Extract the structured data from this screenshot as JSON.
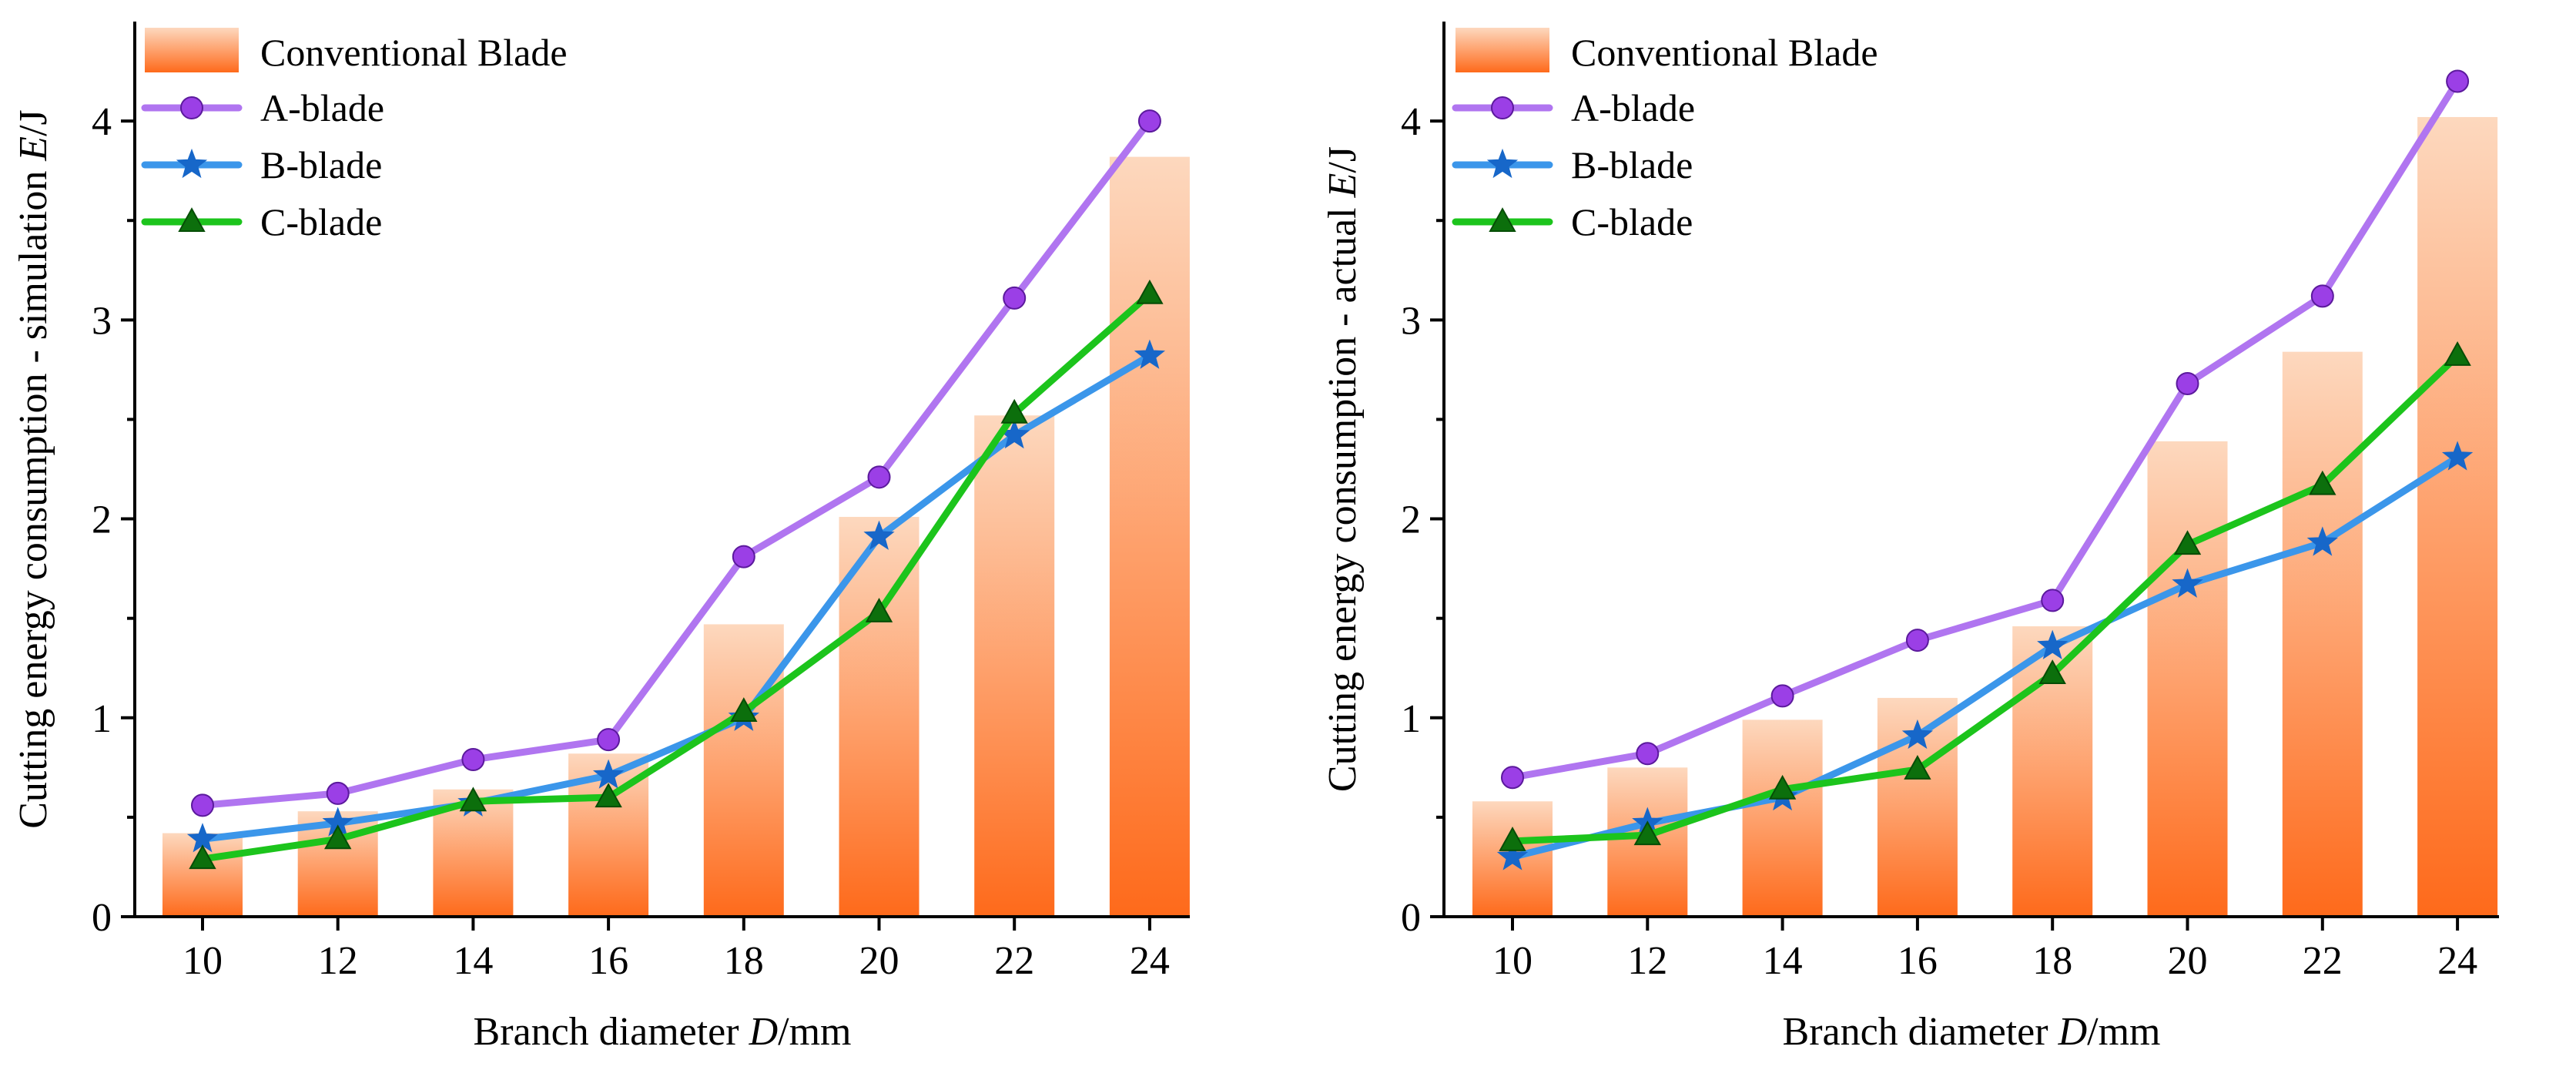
{
  "chart_data": [
    {
      "type": "bar",
      "xlabel": "Branch diameter D/mm",
      "xlabel_parts": [
        "Branch diameter ",
        "D",
        "/mm"
      ],
      "ylabel": "Cutting energy consumption - simulation E/J",
      "ylabel_parts": [
        "Cutting energy consumption - simulation ",
        "E",
        "/J"
      ],
      "categories": [
        "10",
        "12",
        "14",
        "16",
        "18",
        "20",
        "22",
        "24"
      ],
      "yticks": [
        "0",
        "1",
        "2",
        "3",
        "4"
      ],
      "ylim": [
        0,
        4.5
      ],
      "grid": false,
      "legend_position": "top-left",
      "series": [
        {
          "name": "Conventional Blade",
          "kind": "bar",
          "values": [
            0.42,
            0.53,
            0.64,
            0.82,
            1.47,
            2.01,
            2.52,
            3.82
          ]
        },
        {
          "name": "A-blade",
          "kind": "line",
          "marker": "circle",
          "values": [
            0.56,
            0.62,
            0.79,
            0.89,
            1.81,
            2.21,
            3.11,
            4.0
          ]
        },
        {
          "name": "B-blade",
          "kind": "line",
          "marker": "star",
          "values": [
            0.39,
            0.47,
            0.57,
            0.71,
            1.0,
            1.91,
            2.42,
            2.82
          ]
        },
        {
          "name": "C-blade",
          "kind": "line",
          "marker": "triangle",
          "values": [
            0.29,
            0.39,
            0.58,
            0.6,
            1.03,
            1.53,
            2.53,
            3.13
          ]
        }
      ]
    },
    {
      "type": "bar",
      "xlabel": "Branch diameter D/mm",
      "xlabel_parts": [
        "Branch diameter ",
        "D",
        "/mm"
      ],
      "ylabel": "Cutting energy consumption - actual E/J",
      "ylabel_parts": [
        "Cutting energy consumption - actual ",
        "E",
        "/J"
      ],
      "categories": [
        "10",
        "12",
        "14",
        "16",
        "18",
        "20",
        "22",
        "24"
      ],
      "yticks": [
        "0",
        "1",
        "2",
        "3",
        "4"
      ],
      "ylim": [
        0,
        4.5
      ],
      "grid": false,
      "legend_position": "top-left",
      "series": [
        {
          "name": "Conventional Blade",
          "kind": "bar",
          "values": [
            0.58,
            0.75,
            0.99,
            1.1,
            1.46,
            2.39,
            2.84,
            4.02
          ]
        },
        {
          "name": "A-blade",
          "kind": "line",
          "marker": "circle",
          "values": [
            0.7,
            0.82,
            1.11,
            1.39,
            1.59,
            2.68,
            3.12,
            4.2
          ]
        },
        {
          "name": "B-blade",
          "kind": "line",
          "marker": "star",
          "values": [
            0.3,
            0.47,
            0.6,
            0.91,
            1.36,
            1.67,
            1.88,
            2.31
          ]
        },
        {
          "name": "C-blade",
          "kind": "line",
          "marker": "triangle",
          "values": [
            0.38,
            0.41,
            0.64,
            0.74,
            1.22,
            1.87,
            2.17,
            2.82
          ]
        }
      ]
    }
  ],
  "colors": {
    "bar_top": "#fdd8be",
    "bar_bottom": "#fe6a1b",
    "a_line": "#b075f0",
    "a_marker": "#9b3fe6",
    "b_line": "#3b96ea",
    "b_marker": "#1767c9",
    "c_line": "#1cc41c",
    "c_marker": "#0c6f0c"
  }
}
